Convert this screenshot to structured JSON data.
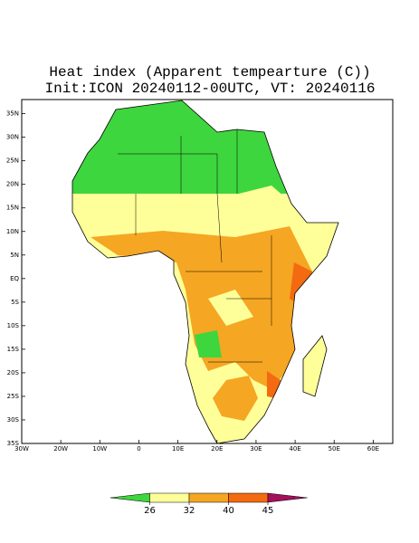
{
  "title": "Heat index (Apparent tempearture (C))",
  "subtitle": "Init:ICON 20240112-00UTC, VT: 20240116",
  "map": {
    "xlim": [
      -30,
      65
    ],
    "ylim": [
      -35,
      38
    ],
    "xticks": [
      {
        "value": -30,
        "label": "30W"
      },
      {
        "value": -20,
        "label": "20W"
      },
      {
        "value": -10,
        "label": "10W"
      },
      0,
      {
        "value": 10,
        "label": "10E"
      },
      {
        "value": 20,
        "label": "20E"
      },
      {
        "value": 30,
        "label": "30E"
      },
      {
        "value": 40,
        "label": "40E"
      },
      {
        "value": 50,
        "label": "50E"
      },
      {
        "value": 60,
        "label": "60E"
      }
    ],
    "yticks": [
      {
        "value": 35,
        "label": "35N"
      },
      {
        "value": 30,
        "label": "30N"
      },
      {
        "value": 25,
        "label": "25N"
      },
      {
        "value": 20,
        "label": "20N"
      },
      {
        "value": 15,
        "label": "15N"
      },
      {
        "value": 10,
        "label": "10N"
      },
      {
        "value": 5,
        "label": "5N"
      },
      {
        "value": 0,
        "label": "EQ"
      },
      {
        "value": -5,
        "label": "5S"
      },
      {
        "value": -10,
        "label": "10S"
      },
      {
        "value": -15,
        "label": "15S"
      },
      {
        "value": -20,
        "label": "20S"
      },
      {
        "value": -25,
        "label": "25S"
      },
      {
        "value": -30,
        "label": "30S"
      },
      {
        "value": -35,
        "label": "35S"
      }
    ]
  },
  "colorbar": {
    "ticks": [
      26,
      32,
      40,
      45
    ],
    "colors": [
      "#3ed63e",
      "#ffff99",
      "#f5a623",
      "#f36a10",
      "#a3105c"
    ]
  }
}
